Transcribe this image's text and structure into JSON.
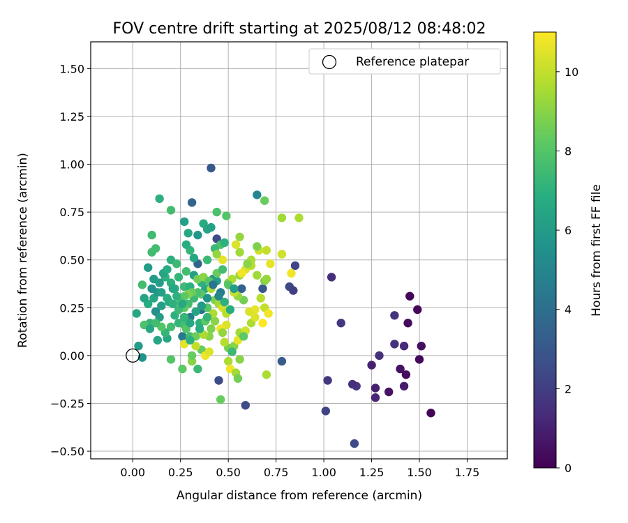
{
  "chart_data": {
    "type": "scatter",
    "title": "FOV centre drift starting at 2025/08/12 08:48:02",
    "xlabel": "Angular distance from reference (arcmin)",
    "ylabel": "Rotation from reference (arcmin)",
    "xlim": [
      -0.22,
      1.96
    ],
    "ylim": [
      -0.54,
      1.64
    ],
    "xticks": [
      "0.00",
      "0.25",
      "0.50",
      "0.75",
      "1.00",
      "1.25",
      "1.50",
      "1.75"
    ],
    "xtick_values": [
      0,
      0.25,
      0.5,
      0.75,
      1.0,
      1.25,
      1.5,
      1.75
    ],
    "yticks": [
      "−0.50",
      "−0.25",
      "0.00",
      "0.25",
      "0.50",
      "0.75",
      "1.00",
      "1.25",
      "1.50"
    ],
    "ytick_values": [
      -0.5,
      -0.25,
      0,
      0.25,
      0.5,
      0.75,
      1.0,
      1.25,
      1.5
    ],
    "grid": true,
    "legend": {
      "position": "top-right",
      "label": "Reference platepar"
    },
    "reference": {
      "x": 0.0,
      "y": 0.0
    },
    "colorbar": {
      "label": "Hours from first FF file",
      "colormap": "viridis",
      "range": [
        0,
        11
      ],
      "ticks": [
        "0",
        "2",
        "4",
        "6",
        "8",
        "10"
      ],
      "tick_values": [
        0,
        2,
        4,
        6,
        8,
        10
      ]
    },
    "points": [
      [
        1.45,
        0.31,
        0.1
      ],
      [
        1.49,
        0.24,
        0.2
      ],
      [
        1.44,
        0.17,
        0.3
      ],
      [
        1.51,
        0.05,
        0.4
      ],
      [
        1.56,
        -0.3,
        0.1
      ],
      [
        1.5,
        -0.02,
        0.2
      ],
      [
        1.43,
        -0.1,
        0.3
      ],
      [
        1.4,
        -0.07,
        0.5
      ],
      [
        1.42,
        -0.16,
        0.8
      ],
      [
        1.34,
        -0.19,
        0.6
      ],
      [
        1.27,
        -0.17,
        1.0
      ],
      [
        1.27,
        -0.22,
        1.2
      ],
      [
        1.25,
        -0.05,
        1.0
      ],
      [
        1.29,
        0.0,
        1.5
      ],
      [
        1.37,
        0.06,
        1.6
      ],
      [
        1.42,
        0.05,
        1.3
      ],
      [
        1.37,
        0.21,
        1.6
      ],
      [
        1.17,
        -0.16,
        1.8
      ],
      [
        1.15,
        -0.15,
        1.5
      ],
      [
        1.09,
        0.17,
        1.8
      ],
      [
        1.04,
        0.41,
        1.4
      ],
      [
        1.02,
        -0.13,
        1.8
      ],
      [
        1.01,
        -0.29,
        2.2
      ],
      [
        1.16,
        -0.46,
        2.5
      ],
      [
        0.85,
        0.47,
        2.2
      ],
      [
        0.82,
        0.36,
        2.4
      ],
      [
        0.84,
        0.34,
        2.0
      ],
      [
        0.78,
        -0.03,
        3.2
      ],
      [
        0.59,
        -0.26,
        2.5
      ],
      [
        0.45,
        -0.13,
        2.5
      ],
      [
        0.41,
        0.98,
        3.0
      ],
      [
        0.31,
        0.8,
        3.6
      ],
      [
        0.44,
        0.61,
        2.6
      ],
      [
        0.57,
        0.35,
        3.5
      ],
      [
        0.68,
        0.35,
        3.0
      ],
      [
        0.34,
        0.48,
        3.5
      ],
      [
        0.36,
        0.24,
        4.0
      ],
      [
        0.46,
        0.33,
        4.5
      ],
      [
        0.3,
        0.2,
        4.5
      ],
      [
        0.26,
        0.1,
        4.5
      ],
      [
        0.65,
        0.84,
        5.0
      ],
      [
        0.27,
        0.7,
        6.2
      ],
      [
        0.14,
        0.82,
        7.0
      ],
      [
        0.2,
        0.76,
        7.6
      ],
      [
        0.05,
        -0.01,
        5.6
      ],
      [
        0.03,
        0.05,
        6.0
      ],
      [
        0.02,
        0.22,
        6.5
      ],
      [
        0.05,
        0.37,
        7.6
      ],
      [
        0.08,
        0.46,
        6.0
      ],
      [
        0.1,
        0.63,
        7.5
      ],
      [
        0.1,
        0.54,
        7.5
      ],
      [
        0.12,
        0.56,
        7.6
      ],
      [
        0.12,
        0.23,
        5.5
      ],
      [
        0.15,
        0.26,
        6.2
      ],
      [
        0.14,
        0.2,
        6.0
      ],
      [
        0.18,
        0.09,
        6.5
      ],
      [
        0.2,
        -0.02,
        8.0
      ],
      [
        0.13,
        0.08,
        6.4
      ],
      [
        0.09,
        0.17,
        7.2
      ],
      [
        0.06,
        0.16,
        7.8
      ],
      [
        0.11,
        0.3,
        6.5
      ],
      [
        0.13,
        0.33,
        5.8
      ],
      [
        0.17,
        0.41,
        7.0
      ],
      [
        0.2,
        0.5,
        7.0
      ],
      [
        0.23,
        0.48,
        7.4
      ],
      [
        0.19,
        0.28,
        6.6
      ],
      [
        0.22,
        0.35,
        6.8
      ],
      [
        0.27,
        0.36,
        7.4
      ],
      [
        0.3,
        0.36,
        7.0
      ],
      [
        0.3,
        0.55,
        7.2
      ],
      [
        0.28,
        0.58,
        6.8
      ],
      [
        0.29,
        0.64,
        6.6
      ],
      [
        0.32,
        0.51,
        6.5
      ],
      [
        0.34,
        0.63,
        5.8
      ],
      [
        0.37,
        0.69,
        6.8
      ],
      [
        0.39,
        0.66,
        6.4
      ],
      [
        0.41,
        0.67,
        6.2
      ],
      [
        0.44,
        0.75,
        7.8
      ],
      [
        0.49,
        0.73,
        8.0
      ],
      [
        0.46,
        0.58,
        7.8
      ],
      [
        0.43,
        0.56,
        7.4
      ],
      [
        0.48,
        0.59,
        7.0
      ],
      [
        0.39,
        0.5,
        7.4
      ],
      [
        0.42,
        0.4,
        5.4
      ],
      [
        0.44,
        0.39,
        6.0
      ],
      [
        0.38,
        0.35,
        6.6
      ],
      [
        0.36,
        0.38,
        7.0
      ],
      [
        0.32,
        0.42,
        6.2
      ],
      [
        0.32,
        0.3,
        7.4
      ],
      [
        0.29,
        0.27,
        7.6
      ],
      [
        0.27,
        0.25,
        8.2
      ],
      [
        0.24,
        0.17,
        7.2
      ],
      [
        0.27,
        0.16,
        7.6
      ],
      [
        0.28,
        0.14,
        8.0
      ],
      [
        0.3,
        0.1,
        7.6
      ],
      [
        0.33,
        0.1,
        8.5
      ],
      [
        0.35,
        0.17,
        7.0
      ],
      [
        0.38,
        0.18,
        8.2
      ],
      [
        0.4,
        0.1,
        9.0
      ],
      [
        0.36,
        0.03,
        8.4
      ],
      [
        0.34,
        -0.07,
        7.4
      ],
      [
        0.31,
        -0.03,
        9.0
      ],
      [
        0.26,
        -0.07,
        8.2
      ],
      [
        0.27,
        0.06,
        10.6
      ],
      [
        0.31,
        0.0,
        8.4
      ],
      [
        0.38,
        0.0,
        10.8
      ],
      [
        0.4,
        0.02,
        10.4
      ],
      [
        0.46,
        -0.23,
        8.4
      ],
      [
        0.5,
        -0.03,
        9.6
      ],
      [
        0.51,
        -0.07,
        10.8
      ],
      [
        0.54,
        -0.09,
        9.4
      ],
      [
        0.56,
        -0.02,
        9.0
      ],
      [
        0.5,
        0.04,
        8.6
      ],
      [
        0.53,
        0.05,
        9.0
      ],
      [
        0.55,
        0.08,
        10.6
      ],
      [
        0.56,
        0.12,
        9.4
      ],
      [
        0.59,
        0.13,
        10.2
      ],
      [
        0.62,
        0.17,
        9.6
      ],
      [
        0.64,
        0.2,
        10.4
      ],
      [
        0.68,
        0.17,
        11.0
      ],
      [
        0.69,
        0.25,
        10.0
      ],
      [
        0.71,
        0.22,
        10.8
      ],
      [
        0.67,
        0.3,
        9.8
      ],
      [
        0.64,
        0.24,
        10.6
      ],
      [
        0.61,
        0.23,
        10.4
      ],
      [
        0.58,
        0.29,
        8.6
      ],
      [
        0.55,
        0.31,
        9.2
      ],
      [
        0.53,
        0.33,
        10.0
      ],
      [
        0.5,
        0.38,
        8.8
      ],
      [
        0.52,
        0.4,
        9.6
      ],
      [
        0.56,
        0.42,
        9.2
      ],
      [
        0.59,
        0.45,
        10.4
      ],
      [
        0.62,
        0.47,
        9.8
      ],
      [
        0.65,
        0.42,
        9.4
      ],
      [
        0.69,
        0.39,
        8.8
      ],
      [
        0.7,
        0.4,
        9.2
      ],
      [
        0.72,
        0.48,
        10.6
      ],
      [
        0.66,
        0.55,
        10.2
      ],
      [
        0.65,
        0.57,
        8.8
      ],
      [
        0.7,
        0.55,
        10.0
      ],
      [
        0.62,
        0.5,
        9.6
      ],
      [
        0.6,
        0.48,
        9.0
      ],
      [
        0.57,
        0.43,
        10.8
      ],
      [
        0.56,
        0.54,
        9.4
      ],
      [
        0.56,
        0.62,
        9.2
      ],
      [
        0.54,
        0.58,
        10.4
      ],
      [
        0.47,
        0.5,
        10.6
      ],
      [
        0.44,
        0.53,
        9.2
      ],
      [
        0.41,
        0.35,
        9.6
      ],
      [
        0.43,
        0.29,
        8.8
      ],
      [
        0.45,
        0.27,
        9.4
      ],
      [
        0.47,
        0.25,
        10.2
      ],
      [
        0.49,
        0.22,
        9.8
      ],
      [
        0.49,
        0.16,
        10.4
      ],
      [
        0.46,
        0.14,
        10.8
      ],
      [
        0.43,
        0.18,
        9.0
      ],
      [
        0.42,
        0.22,
        9.6
      ],
      [
        0.39,
        0.25,
        8.0
      ],
      [
        0.36,
        0.32,
        8.2
      ],
      [
        0.34,
        0.33,
        7.8
      ],
      [
        0.31,
        0.33,
        8.4
      ],
      [
        0.29,
        0.32,
        8.8
      ],
      [
        0.27,
        0.31,
        8.2
      ],
      [
        0.25,
        0.28,
        7.8
      ],
      [
        0.22,
        0.21,
        7.0
      ],
      [
        0.2,
        0.15,
        7.6
      ],
      [
        0.17,
        0.12,
        7.2
      ],
      [
        0.15,
        0.15,
        8.0
      ],
      [
        0.12,
        0.17,
        7.6
      ],
      [
        0.09,
        0.14,
        6.6
      ],
      [
        0.08,
        0.27,
        6.8
      ],
      [
        0.06,
        0.3,
        6.4
      ],
      [
        0.1,
        0.35,
        5.6
      ],
      [
        0.14,
        0.38,
        6.0
      ],
      [
        0.16,
        0.43,
        6.4
      ],
      [
        0.18,
        0.45,
        6.8
      ],
      [
        0.2,
        0.38,
        7.0
      ],
      [
        0.24,
        0.41,
        7.2
      ],
      [
        0.28,
        0.44,
        7.6
      ],
      [
        0.34,
        0.4,
        8.6
      ],
      [
        0.37,
        0.41,
        9.0
      ],
      [
        0.4,
        0.39,
        8.0
      ],
      [
        0.44,
        0.43,
        8.4
      ],
      [
        0.47,
        0.45,
        7.6
      ],
      [
        0.5,
        0.37,
        8.0
      ],
      [
        0.53,
        0.35,
        6.0
      ],
      [
        0.51,
        0.24,
        6.8
      ],
      [
        0.48,
        0.28,
        7.0
      ],
      [
        0.45,
        0.31,
        5.0
      ],
      [
        0.42,
        0.37,
        4.2
      ],
      [
        0.39,
        0.3,
        5.6
      ],
      [
        0.36,
        0.26,
        6.0
      ],
      [
        0.33,
        0.23,
        6.4
      ],
      [
        0.3,
        0.17,
        6.6
      ],
      [
        0.27,
        0.2,
        7.2
      ],
      [
        0.24,
        0.24,
        7.4
      ],
      [
        0.21,
        0.27,
        7.0
      ],
      [
        0.18,
        0.3,
        6.8
      ],
      [
        0.15,
        0.33,
        6.2
      ],
      [
        0.11,
        0.4,
        6.0
      ],
      [
        0.78,
        0.72,
        9.4
      ],
      [
        0.87,
        0.72,
        9.6
      ],
      [
        0.83,
        0.43,
        10.8
      ],
      [
        0.78,
        0.53,
        10.2
      ],
      [
        0.69,
        0.81,
        8.4
      ],
      [
        0.7,
        -0.1,
        9.6
      ],
      [
        0.55,
        -0.12,
        8.6
      ],
      [
        0.58,
        0.1,
        8.2
      ],
      [
        0.52,
        0.02,
        7.4
      ],
      [
        0.48,
        0.07,
        9.8
      ],
      [
        0.47,
        0.12,
        9.2
      ],
      [
        0.41,
        0.14,
        8.8
      ],
      [
        0.37,
        0.11,
        9.6
      ],
      [
        0.33,
        0.05,
        10.0
      ],
      [
        0.3,
        0.08,
        7.0
      ],
      [
        0.35,
        0.14,
        6.8
      ],
      [
        0.39,
        0.2,
        7.2
      ],
      [
        0.26,
        0.27,
        6.6
      ],
      [
        0.23,
        0.31,
        7.0
      ],
      [
        0.21,
        0.35,
        6.6
      ]
    ]
  }
}
